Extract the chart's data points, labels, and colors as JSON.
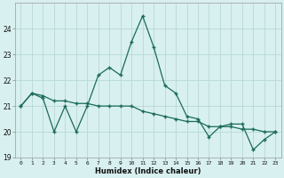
{
  "line1_x": [
    0,
    1,
    2,
    3,
    4,
    5,
    6,
    7,
    8,
    9,
    10,
    11,
    12,
    13,
    14,
    15,
    16,
    17,
    18,
    19,
    20,
    21,
    22,
    23
  ],
  "line1_y": [
    21.0,
    21.5,
    21.3,
    20.0,
    21.0,
    20.0,
    21.0,
    22.2,
    22.5,
    22.2,
    23.5,
    24.5,
    23.3,
    21.8,
    21.5,
    20.6,
    20.5,
    19.8,
    20.2,
    20.3,
    20.3,
    19.3,
    19.7,
    20.0
  ],
  "line2_x": [
    0,
    1,
    2,
    3,
    4,
    5,
    6,
    7,
    8,
    9,
    10,
    11,
    12,
    13,
    14,
    15,
    16,
    17,
    18,
    19,
    20,
    21,
    22,
    23
  ],
  "line2_y": [
    21.0,
    21.5,
    21.4,
    21.2,
    21.2,
    21.1,
    21.1,
    21.0,
    21.0,
    21.0,
    21.0,
    20.8,
    20.7,
    20.6,
    20.5,
    20.4,
    20.4,
    20.2,
    20.2,
    20.2,
    20.1,
    20.1,
    20.0,
    20.0
  ],
  "line_color": "#1a6b5a",
  "bg_color": "#d8f0f0",
  "grid_color": "#b8d8d8",
  "xlabel": "Humidex (Indice chaleur)",
  "ylim": [
    19,
    25
  ],
  "xlim": [
    -0.5,
    23.5
  ],
  "yticks": [
    19,
    20,
    21,
    22,
    23,
    24
  ],
  "xtick_labels": [
    "0",
    "1",
    "2",
    "3",
    "4",
    "5",
    "6",
    "7",
    "8",
    "9",
    "10",
    "11",
    "12",
    "13",
    "14",
    "15",
    "16",
    "17",
    "18",
    "19",
    "20",
    "21",
    "22",
    "23"
  ],
  "xlabel_fontsize": 6.0,
  "xlabel_fontweight": "bold",
  "ytick_fontsize": 5.5,
  "xtick_fontsize": 4.5,
  "line_width": 0.9,
  "marker_size": 3.5
}
